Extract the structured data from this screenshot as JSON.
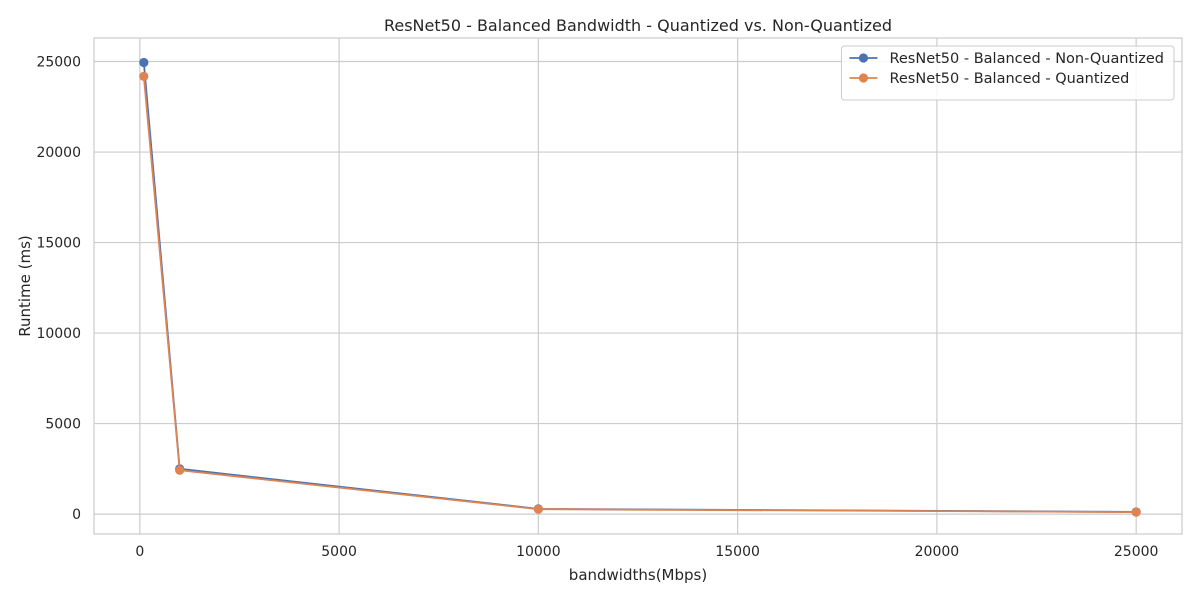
{
  "chart_data": {
    "type": "line",
    "title": "ResNet50 - Balanced Bandwidth - Quantized vs. Non-Quantized",
    "xlabel": "bandwidths(Mbps)",
    "ylabel": "Runtime (ms)",
    "xlim": [
      -1150,
      26150
    ],
    "ylim": [
      -1100,
      26300
    ],
    "xticks": [
      0,
      5000,
      10000,
      15000,
      20000,
      25000
    ],
    "xtick_labels": [
      "0",
      "5000",
      "10000",
      "15000",
      "20000",
      "25000"
    ],
    "yticks": [
      0,
      5000,
      10000,
      15000,
      20000,
      25000
    ],
    "ytick_labels": [
      "0",
      "5000",
      "10000",
      "15000",
      "20000",
      "25000"
    ],
    "grid": true,
    "legend_position": "top-right",
    "series": [
      {
        "name": "ResNet50 - Balanced - Non-Quantized",
        "color": "#4c72b0",
        "x": [
          100,
          1000,
          10000,
          25000
        ],
        "y": [
          24950,
          2500,
          290,
          120
        ]
      },
      {
        "name": "ResNet50 - Balanced - Quantized",
        "color": "#dd8452",
        "x": [
          100,
          1000,
          10000,
          25000
        ],
        "y": [
          24180,
          2420,
          270,
          110
        ]
      }
    ]
  }
}
